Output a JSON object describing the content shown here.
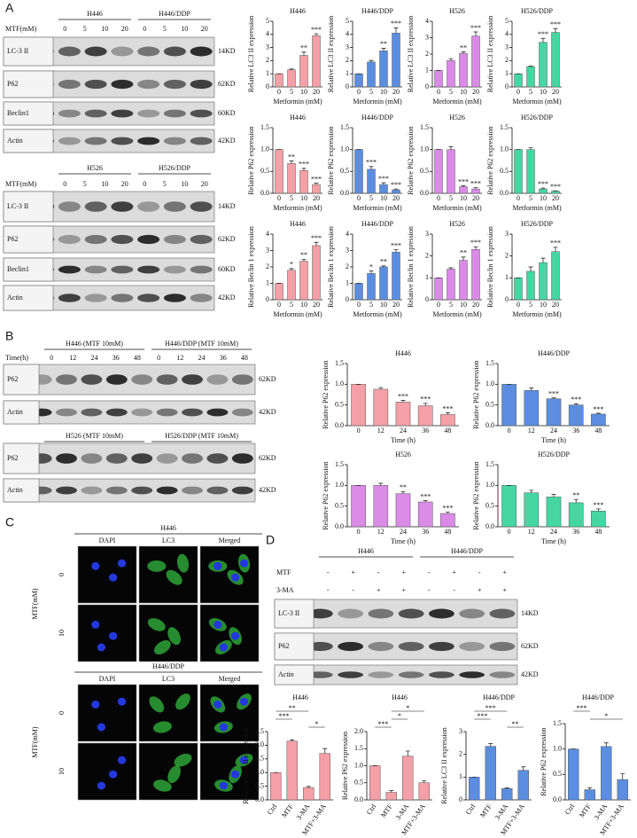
{
  "panels": {
    "A": {
      "label": "A",
      "blots": [
        {
          "groups": [
            "H446",
            "H446/DDP"
          ],
          "condition": "MTF(mM)",
          "lanes": [
            "0",
            "5",
            "10",
            "20",
            "0",
            "5",
            "10",
            "20"
          ],
          "rows": [
            {
              "name": "LC-3 II",
              "size": "14KD"
            },
            {
              "name": "P62",
              "size": "62KD"
            },
            {
              "name": "Beclin1",
              "size": "60KD"
            },
            {
              "name": "Actin",
              "size": "42KD"
            }
          ]
        },
        {
          "groups": [
            "H526",
            "H526/DDP"
          ],
          "condition": "MTF(mM)",
          "lanes": [
            "0",
            "5",
            "10",
            "20",
            "0",
            "5",
            "10",
            "20"
          ],
          "rows": [
            {
              "name": "LC-3 II",
              "size": "14KD"
            },
            {
              "name": "P62",
              "size": "62KD"
            },
            {
              "name": "Beclin1",
              "size": "60KD"
            },
            {
              "name": "Actin",
              "size": "42KD"
            }
          ]
        }
      ]
    },
    "B": {
      "label": "B",
      "blots": [
        {
          "groups": [
            "H446 (MTF 10mM)",
            "H446/DDP (MTF 10mM)"
          ],
          "condition": "Time(h)",
          "lanes": [
            "0",
            "12",
            "24",
            "36",
            "48",
            "0",
            "12",
            "24",
            "36",
            "48"
          ],
          "rows": [
            {
              "name": "P62",
              "size": "62KD"
            },
            {
              "name": "Actin",
              "size": "42KD"
            }
          ]
        },
        {
          "groups": [
            "H526 (MTF 10mM)",
            "H526/DDP (MTF 10mM)"
          ],
          "rows": [
            {
              "name": "P62",
              "size": "62KD"
            },
            {
              "name": "Actin",
              "size": "42KD"
            }
          ]
        }
      ]
    },
    "C": {
      "label": "C",
      "groups": [
        {
          "title": "H446",
          "channels": [
            "DAPI",
            "LC3",
            "Merged"
          ],
          "condition": "MTF(mM)",
          "doses": [
            "0",
            "10"
          ]
        },
        {
          "title": "H446/DDP",
          "channels": [
            "DAPI",
            "LC3",
            "Merged"
          ],
          "condition": "MTF(mM)",
          "doses": [
            "0",
            "10"
          ]
        }
      ]
    },
    "D": {
      "label": "D",
      "blot": {
        "groups": [
          "H446",
          "H446/DDP"
        ],
        "treatments": [
          {
            "name": "MTF",
            "signs": [
              "-",
              "+",
              "-",
              "+",
              "-",
              "+",
              "-",
              "+"
            ]
          },
          {
            "name": "3-MA",
            "signs": [
              "-",
              "-",
              "+",
              "+",
              "-",
              "-",
              "+",
              "+"
            ]
          }
        ],
        "rows": [
          {
            "name": "LC-3 II",
            "size": "14KD"
          },
          {
            "name": "P62",
            "size": "62KD"
          },
          {
            "name": "Actin",
            "size": "42KD"
          }
        ]
      }
    }
  },
  "chart_data": [
    {
      "type": "bar",
      "title": "H446",
      "ylabel": "Relative LC3 II expression",
      "xlabel": "Metformin (mM)",
      "categories": [
        "0",
        "5",
        "10",
        "20"
      ],
      "values": [
        1,
        1.3,
        2.4,
        3.9
      ],
      "errors": [
        0,
        0.06,
        0.25,
        0.15
      ],
      "annotations": [
        null,
        null,
        "**",
        "***"
      ],
      "color": "#f4a0a6",
      "ylim": [
        0,
        5
      ],
      "yticks": [
        0,
        1,
        2,
        3,
        4,
        5
      ]
    },
    {
      "type": "bar",
      "title": "H446/DDP",
      "ylabel": "Relative LC3 II expression",
      "xlabel": "Metformin (mM)",
      "categories": [
        "0",
        "5",
        "10",
        "20"
      ],
      "values": [
        1,
        1.9,
        2.75,
        4.1
      ],
      "errors": [
        0,
        0.12,
        0.2,
        0.4
      ],
      "annotations": [
        null,
        null,
        "**",
        "***"
      ],
      "color": "#5b8ee0",
      "ylim": [
        0,
        5
      ],
      "yticks": [
        0,
        1,
        2,
        3,
        4,
        5
      ]
    },
    {
      "type": "bar",
      "title": "H526",
      "ylabel": "Relative LC3 II expression",
      "xlabel": "Metformin (mM)",
      "categories": [
        "0",
        "5",
        "10",
        "20"
      ],
      "values": [
        1,
        1.6,
        2.05,
        3.1
      ],
      "errors": [
        0,
        0.12,
        0.08,
        0.25
      ],
      "annotations": [
        null,
        null,
        "**",
        "***"
      ],
      "color": "#d98be6",
      "ylim": [
        0,
        4
      ],
      "yticks": [
        0,
        1,
        2,
        3,
        4
      ]
    },
    {
      "type": "bar",
      "title": "H526/DDP",
      "ylabel": "Relative LC3 II expression",
      "xlabel": "Metformin (mM)",
      "categories": [
        "0",
        "5",
        "10",
        "20"
      ],
      "values": [
        1,
        1.55,
        3.4,
        4.15
      ],
      "errors": [
        0,
        0.05,
        0.3,
        0.3
      ],
      "annotations": [
        null,
        null,
        "***",
        "***"
      ],
      "color": "#45d6a4",
      "ylim": [
        0,
        5
      ],
      "yticks": [
        0,
        1,
        2,
        3,
        4,
        5
      ]
    },
    {
      "type": "bar",
      "title": "H446",
      "ylabel": "Relative P62 expression",
      "xlabel": "Metformin (mM)",
      "categories": [
        "0",
        "5",
        "10",
        "20"
      ],
      "values": [
        1,
        0.68,
        0.52,
        0.2
      ],
      "errors": [
        0,
        0.06,
        0.05,
        0.03
      ],
      "annotations": [
        null,
        "**",
        "***",
        "***"
      ],
      "color": "#f4a0a6",
      "ylim": [
        0,
        1.5
      ],
      "yticks": [
        {
          "value": 0,
          "label": "0.0"
        },
        0.5,
        {
          "value": 1,
          "label": "1.0"
        },
        1.5
      ]
    },
    {
      "type": "bar",
      "title": "H446/DDP",
      "ylabel": "Relative P62 expression",
      "xlabel": "Metformin (mM)",
      "categories": [
        "0",
        "5",
        "10",
        "20"
      ],
      "values": [
        1,
        0.55,
        0.2,
        0.08
      ],
      "errors": [
        0,
        0.06,
        0.04,
        0.02
      ],
      "annotations": [
        null,
        "***",
        "***",
        "***"
      ],
      "color": "#5b8ee0",
      "ylim": [
        0,
        1.5
      ],
      "yticks": [
        {
          "value": 0,
          "label": "0.0"
        },
        0.5,
        {
          "value": 1,
          "label": "1.0"
        },
        1.5
      ]
    },
    {
      "type": "bar",
      "title": "H526",
      "ylabel": "Relative P62 expression",
      "xlabel": "Metformin (mM)",
      "categories": [
        "0",
        "5",
        "10",
        "20"
      ],
      "values": [
        1,
        1.0,
        0.15,
        0.1
      ],
      "errors": [
        0,
        0.07,
        0.02,
        0.03
      ],
      "annotations": [
        null,
        null,
        "***",
        "***"
      ],
      "color": "#d98be6",
      "ylim": [
        0,
        1.5
      ],
      "yticks": [
        {
          "value": 0,
          "label": "0.0"
        },
        0.5,
        {
          "value": 1,
          "label": "1.0"
        },
        1.5
      ]
    },
    {
      "type": "bar",
      "title": "H526/DDP",
      "ylabel": "Relative P62 expression",
      "xlabel": "Metformin (mM)",
      "categories": [
        "0",
        "5",
        "10",
        "20"
      ],
      "values": [
        1,
        1.0,
        0.1,
        0.05
      ],
      "errors": [
        0,
        0.04,
        0.02,
        0.01
      ],
      "annotations": [
        null,
        null,
        "***",
        "***"
      ],
      "color": "#45d6a4",
      "ylim": [
        0,
        1.5
      ],
      "yticks": [
        {
          "value": 0,
          "label": "0.0"
        },
        0.5,
        {
          "value": 1,
          "label": "1.0"
        },
        1.5
      ]
    },
    {
      "type": "bar",
      "title": "H446",
      "ylabel": "Relative Beclin 1 expression",
      "xlabel": "Metformin (mM)",
      "categories": [
        "0",
        "5",
        "10",
        "20"
      ],
      "values": [
        1,
        1.8,
        2.35,
        3.3
      ],
      "errors": [
        0,
        0.1,
        0.12,
        0.2
      ],
      "annotations": [
        null,
        "*",
        "**",
        "***"
      ],
      "color": "#f4a0a6",
      "ylim": [
        0,
        4
      ],
      "yticks": [
        0,
        1,
        2,
        3,
        4
      ]
    },
    {
      "type": "bar",
      "title": "H446/DDP",
      "ylabel": "Relative Beclin 1 expression",
      "xlabel": "Metformin (mM)",
      "categories": [
        "0",
        "5",
        "10",
        "20"
      ],
      "values": [
        1,
        1.6,
        2.0,
        2.9
      ],
      "errors": [
        0,
        0.15,
        0.06,
        0.15
      ],
      "annotations": [
        null,
        "*",
        "**",
        "***"
      ],
      "color": "#5b8ee0",
      "ylim": [
        0,
        4
      ],
      "yticks": [
        0,
        1,
        2,
        3,
        4
      ]
    },
    {
      "type": "bar",
      "title": "H526",
      "ylabel": "Relative Beclin 1 expression",
      "xlabel": "Metformin (mM)",
      "categories": [
        "0",
        "5",
        "10",
        "20"
      ],
      "values": [
        1,
        1.4,
        1.8,
        2.3
      ],
      "errors": [
        0,
        0.06,
        0.15,
        0.12
      ],
      "annotations": [
        null,
        null,
        "**",
        "***"
      ],
      "color": "#d98be6",
      "ylim": [
        0,
        3
      ],
      "yticks": [
        0,
        1,
        2,
        3
      ]
    },
    {
      "type": "bar",
      "title": "H526/DDP",
      "ylabel": "Relative Beclin 1 expression",
      "xlabel": "Metformin (mM)",
      "categories": [
        "0",
        "5",
        "10",
        "20"
      ],
      "values": [
        1,
        1.3,
        1.7,
        2.2
      ],
      "errors": [
        0,
        0.2,
        0.2,
        0.2
      ],
      "annotations": [
        null,
        null,
        null,
        "***"
      ],
      "color": "#45d6a4",
      "ylim": [
        0,
        3
      ],
      "yticks": [
        0,
        1,
        2,
        3
      ]
    },
    {
      "type": "bar",
      "title": "H446",
      "ylabel": "Relative P62 expression",
      "xlabel": "Time (h)",
      "categories": [
        "0",
        "12",
        "24",
        "36",
        "48"
      ],
      "values": [
        1,
        0.88,
        0.57,
        0.48,
        0.27
      ],
      "errors": [
        0,
        0.04,
        0.04,
        0.06,
        0.04
      ],
      "annotations": [
        null,
        null,
        "***",
        "***",
        "***"
      ],
      "color": "#f4a0a6",
      "ylim": [
        0,
        1.5
      ],
      "yticks": [
        {
          "value": 0,
          "label": "0.0"
        },
        0.5,
        {
          "value": 1,
          "label": "1.0"
        },
        1.5
      ]
    },
    {
      "type": "bar",
      "title": "H446/DDP",
      "ylabel": "Relative P62 expression",
      "xlabel": "Time (h)",
      "categories": [
        "0",
        "12",
        "24",
        "36",
        "48"
      ],
      "values": [
        1,
        0.85,
        0.65,
        0.5,
        0.28
      ],
      "errors": [
        0,
        0.06,
        0.02,
        0.03,
        0.02
      ],
      "annotations": [
        null,
        null,
        "***",
        "***",
        "***"
      ],
      "color": "#5b8ee0",
      "ylim": [
        0,
        1.5
      ],
      "yticks": [
        {
          "value": 0,
          "label": "0.0"
        },
        0.5,
        {
          "value": 1,
          "label": "1.0"
        },
        1.5
      ]
    },
    {
      "type": "bar",
      "title": "H526",
      "ylabel": "Relative P62 expression",
      "xlabel": "Time (h)",
      "categories": [
        "0",
        "12",
        "24",
        "36",
        "48"
      ],
      "values": [
        1,
        1.0,
        0.8,
        0.6,
        0.32
      ],
      "errors": [
        0,
        0.05,
        0.05,
        0.03,
        0.03
      ],
      "annotations": [
        null,
        null,
        "**",
        "***",
        "***"
      ],
      "color": "#d98be6",
      "ylim": [
        0,
        1.5
      ],
      "yticks": [
        {
          "value": 0,
          "label": "0.0"
        },
        0.5,
        {
          "value": 1,
          "label": "1.0"
        },
        1.5
      ]
    },
    {
      "type": "bar",
      "title": "H526/DDP",
      "ylabel": "Relative P62 expression",
      "xlabel": "Time (h)",
      "categories": [
        "0",
        "12",
        "24",
        "36",
        "48"
      ],
      "values": [
        1,
        0.82,
        0.72,
        0.58,
        0.38
      ],
      "errors": [
        0,
        0.06,
        0.06,
        0.08,
        0.05
      ],
      "annotations": [
        null,
        null,
        null,
        "**",
        "***"
      ],
      "color": "#45d6a4",
      "ylim": [
        0,
        1.5
      ],
      "yticks": [
        {
          "value": 0,
          "label": "0.0"
        },
        0.5,
        {
          "value": 1,
          "label": "1.0"
        },
        1.5
      ]
    },
    {
      "type": "bar",
      "title": "H446",
      "ylabel": "Relative LC3 II expression",
      "categories": [
        "Ctrl",
        "MTF",
        "3-MA",
        "MTF+3-MA"
      ],
      "values": [
        1,
        2.15,
        0.45,
        1.7
      ],
      "errors": [
        0,
        0.05,
        0.04,
        0.18
      ],
      "comparisons": [
        {
          "label": "**",
          "between": [
            0,
            2
          ]
        },
        {
          "label": "***",
          "between": [
            0,
            1
          ]
        },
        {
          "label": "*",
          "between": [
            2,
            3
          ]
        }
      ],
      "color": "#f4a0a6",
      "ylim": [
        0,
        2.5
      ],
      "yticks": [
        {
          "value": 0,
          "label": "0.0"
        },
        0.5,
        {
          "value": 1,
          "label": "1.0"
        },
        1.5,
        {
          "value": 2,
          "label": "2.0"
        },
        2.5
      ]
    },
    {
      "type": "bar",
      "title": "H446",
      "ylabel": "Relative P62 expression",
      "categories": [
        "Ctrl",
        "MTF",
        "3-MA",
        "MTF+3-MA"
      ],
      "values": [
        1,
        0.22,
        1.28,
        0.5
      ],
      "errors": [
        0,
        0.05,
        0.15,
        0.06
      ],
      "comparisons": [
        {
          "label": "*",
          "between": [
            1,
            3
          ]
        },
        {
          "label": "*",
          "between": [
            1,
            2
          ]
        },
        {
          "label": "***",
          "between": [
            0,
            1
          ]
        }
      ],
      "color": "#f4a0a6",
      "ylim": [
        0,
        2
      ],
      "yticks": [
        {
          "value": 0,
          "label": "0.0"
        },
        0.5,
        {
          "value": 1,
          "label": "1.0"
        },
        1.5,
        {
          "value": 2,
          "label": "2.0"
        }
      ]
    },
    {
      "type": "bar",
      "title": "H446/DDP",
      "ylabel": "Relative LC3 II expression",
      "categories": [
        "Ctrl",
        "MTF",
        "3-MA",
        "MTF+3-MA"
      ],
      "values": [
        1,
        2.35,
        0.5,
        1.3
      ],
      "errors": [
        0,
        0.12,
        0.03,
        0.15
      ],
      "comparisons": [
        {
          "label": "***",
          "between": [
            0,
            2
          ]
        },
        {
          "label": "***",
          "between": [
            0,
            1
          ]
        },
        {
          "label": "**",
          "between": [
            2,
            3
          ]
        }
      ],
      "color": "#5b8ee0",
      "ylim": [
        0,
        3
      ],
      "yticks": [
        0,
        1,
        2,
        3
      ]
    },
    {
      "type": "bar",
      "title": "H446/DDP",
      "ylabel": "Relative P62 expression",
      "categories": [
        "Ctrl",
        "MTF",
        "3-MA",
        "MTF+3-MA"
      ],
      "values": [
        1,
        0.2,
        1.05,
        0.4
      ],
      "errors": [
        0,
        0.04,
        0.07,
        0.12
      ],
      "comparisons": [
        {
          "label": "***",
          "between": [
            0,
            1
          ]
        },
        {
          "label": "*",
          "between": [
            1,
            3
          ]
        }
      ],
      "color": "#5b8ee0",
      "ylim": [
        0,
        1.5
      ],
      "yticks": [
        {
          "value": 0,
          "label": "0.0"
        },
        0.5,
        {
          "value": 1,
          "label": "1.0"
        },
        1.5
      ]
    }
  ]
}
